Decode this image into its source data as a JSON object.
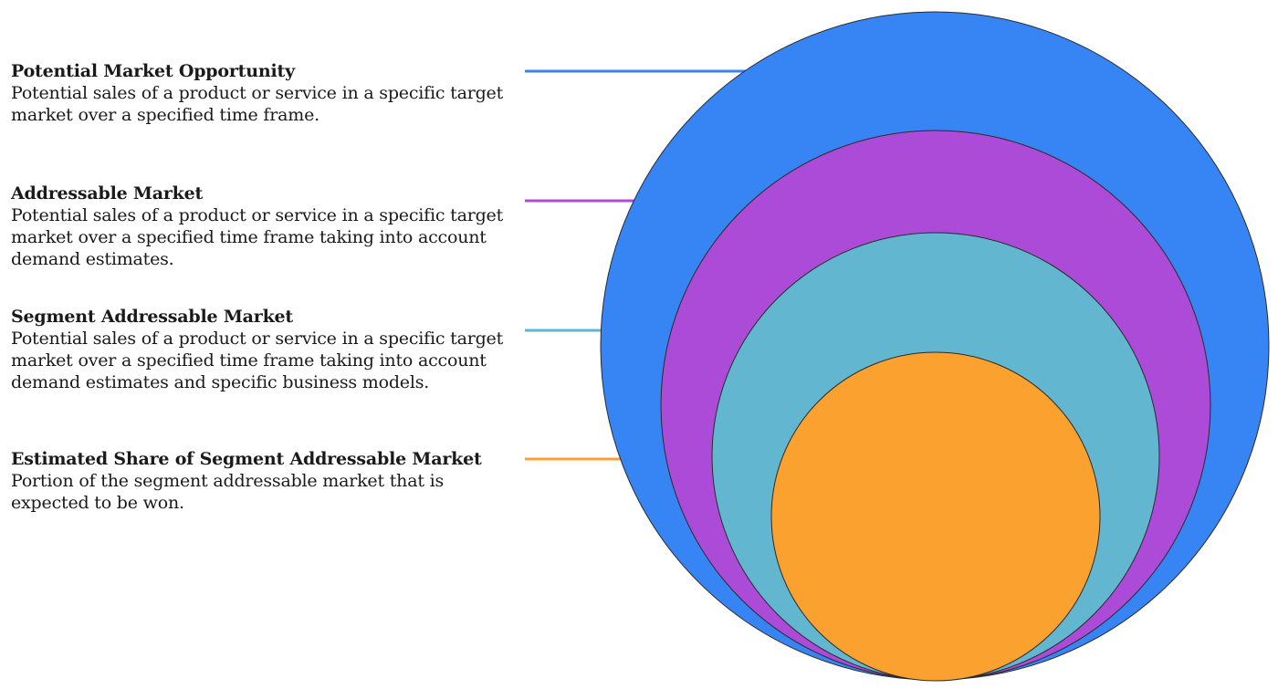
{
  "layers": [
    {
      "title": "Potential Market Opportunity",
      "description": "Potential sales of a product or service in a specific target market over a specified time frame.",
      "color": "#3784f4"
    },
    {
      "title": "Addressable Market",
      "description": "Potential sales of a product or service in a specific target market over a specified time frame taking into account demand estimates.",
      "color": "#ad4bd9"
    },
    {
      "title": "Segment Addressable Market",
      "description": "Potential sales of a product or service in a specific target market over a specified time frame taking into account demand estimates and specific business models.",
      "color": "#62b6cf"
    },
    {
      "title": "Estimated Share of Segment Addressable Market",
      "description": "Portion of the segment addressable market that is expected to be won.",
      "color": "#fba12f"
    }
  ]
}
